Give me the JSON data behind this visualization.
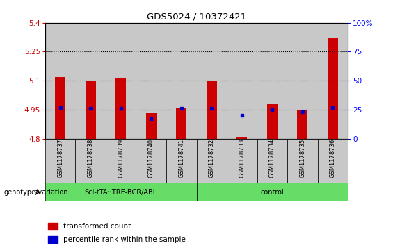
{
  "title": "GDS5024 / 10372421",
  "samples": [
    "GSM1178737",
    "GSM1178738",
    "GSM1178739",
    "GSM1178740",
    "GSM1178741",
    "GSM1178732",
    "GSM1178733",
    "GSM1178734",
    "GSM1178735",
    "GSM1178736"
  ],
  "red_values": [
    5.12,
    5.1,
    5.11,
    4.93,
    4.96,
    5.1,
    4.81,
    4.98,
    4.95,
    5.32
  ],
  "blue_pct": [
    27,
    26,
    26,
    17,
    26,
    26,
    20,
    25,
    23,
    27
  ],
  "ylim_left": [
    4.8,
    5.4
  ],
  "ylim_right": [
    0,
    100
  ],
  "yticks_left": [
    4.8,
    4.95,
    5.1,
    5.25,
    5.4
  ],
  "yticks_left_labels": [
    "4.8",
    "4.95",
    "5.1",
    "5.25",
    "5.4"
  ],
  "yticks_right": [
    0,
    25,
    50,
    75,
    100
  ],
  "yticks_right_labels": [
    "0",
    "25",
    "50",
    "75",
    "100%"
  ],
  "hlines": [
    4.95,
    5.1,
    5.25
  ],
  "groups": [
    {
      "label": "ScI-tTA::TRE-BCR/ABL",
      "start": 0,
      "end": 5
    },
    {
      "label": "control",
      "start": 5,
      "end": 10
    }
  ],
  "group_row_label": "genotype/variation",
  "legend_items": [
    {
      "color": "#cc0000",
      "label": "transformed count"
    },
    {
      "color": "#0000cc",
      "label": "percentile rank within the sample"
    }
  ],
  "bar_color": "#cc0000",
  "dot_color": "#0000cc",
  "cell_bg": "#c8c8c8",
  "group_bg": "#66dd66",
  "plot_bg": "#ffffff",
  "bar_width": 0.35
}
